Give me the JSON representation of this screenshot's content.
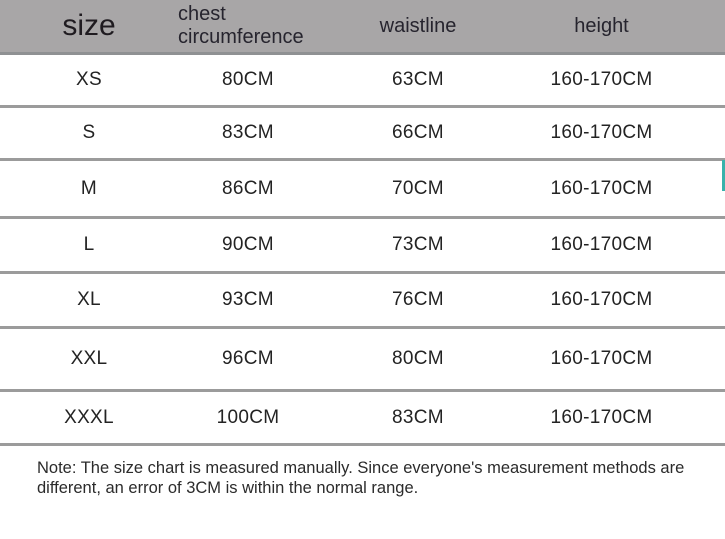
{
  "table": {
    "columns": [
      {
        "key": "size",
        "label": "size"
      },
      {
        "key": "chest",
        "label": "chest circumference"
      },
      {
        "key": "waistline",
        "label": "waistline"
      },
      {
        "key": "height",
        "label": "height"
      }
    ],
    "rows": [
      {
        "size": "XS",
        "chest": "80CM",
        "waistline": "63CM",
        "height": "160-170CM"
      },
      {
        "size": "S",
        "chest": "83CM",
        "waistline": "66CM",
        "height": "160-170CM"
      },
      {
        "size": "M",
        "chest": "86CM",
        "waistline": "70CM",
        "height": "160-170CM"
      },
      {
        "size": "L",
        "chest": "90CM",
        "waistline": "73CM",
        "height": "160-170CM"
      },
      {
        "size": "XL",
        "chest": "93CM",
        "waistline": "76CM",
        "height": "160-170CM"
      },
      {
        "size": "XXL",
        "chest": "96CM",
        "waistline": "80CM",
        "height": "160-170CM"
      },
      {
        "size": "XXXL",
        "chest": "100CM",
        "waistline": "83CM",
        "height": "160-170CM"
      }
    ]
  },
  "note": "Note: The size chart is measured manually. Since everyone's measurement methods are different, an error of 3CM is within the normal range.",
  "colors": {
    "header_bg": "#a8a6a7",
    "divider": "#9b9b9b",
    "scrollbar_accent": "#38b2ab",
    "body_text": "#232323"
  },
  "chart_data": {
    "type": "table",
    "title": "size chart",
    "columns": [
      "size",
      "chest circumference",
      "waistline",
      "height"
    ],
    "rows": [
      [
        "XS",
        "80CM",
        "63CM",
        "160-170CM"
      ],
      [
        "S",
        "83CM",
        "66CM",
        "160-170CM"
      ],
      [
        "M",
        "86CM",
        "70CM",
        "160-170CM"
      ],
      [
        "L",
        "90CM",
        "73CM",
        "160-170CM"
      ],
      [
        "XL",
        "93CM",
        "76CM",
        "160-170CM"
      ],
      [
        "XXL",
        "96CM",
        "80CM",
        "160-170CM"
      ],
      [
        "XXXL",
        "100CM",
        "83CM",
        "160-170CM"
      ]
    ],
    "footnote": "Note: The size chart is measured manually. Since everyone's measurement methods are different, an error of 3CM is within the normal range."
  }
}
